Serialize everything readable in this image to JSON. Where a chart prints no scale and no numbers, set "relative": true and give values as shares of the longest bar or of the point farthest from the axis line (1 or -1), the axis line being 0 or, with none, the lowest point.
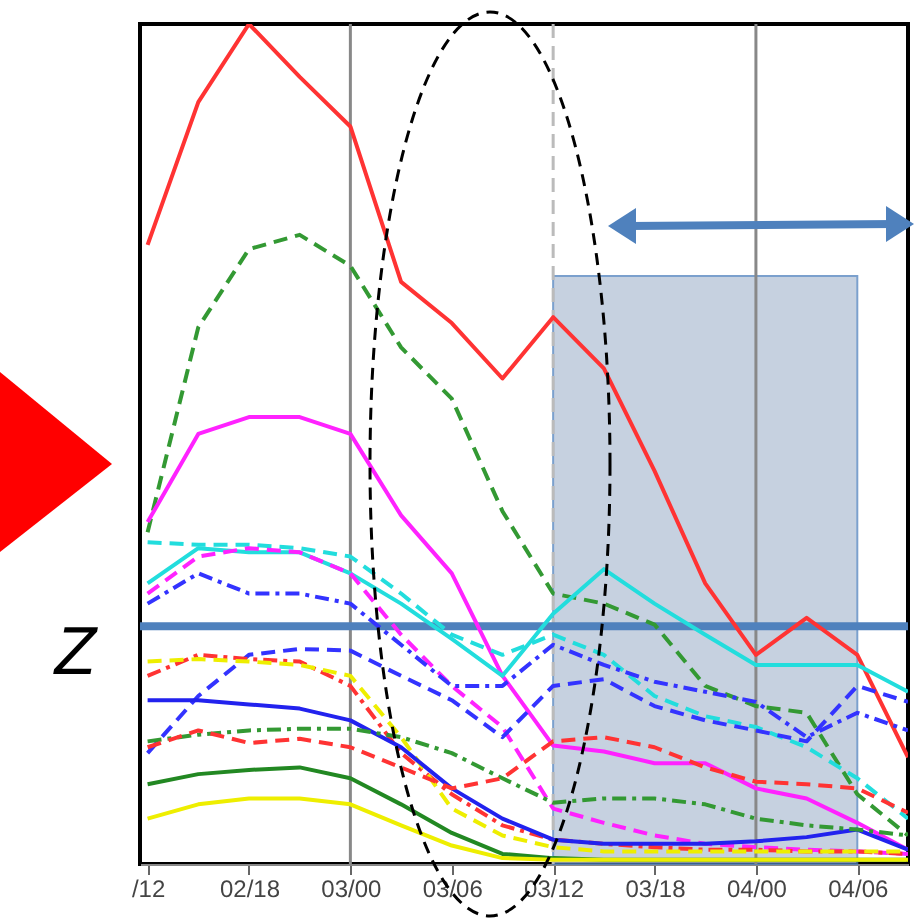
{
  "chart_data": {
    "type": "line",
    "relative": true,
    "categories": [
      "/12",
      null,
      "02/18",
      null,
      "03/00",
      null,
      "03/06",
      null,
      "03/12",
      null,
      "03/18",
      null,
      "04/00",
      null,
      "04/06",
      null
    ],
    "grid": false,
    "series": [
      {
        "color": "#ff3333",
        "line_style": "solid",
        "values": [
          0.737,
          0.907,
          1,
          0.937,
          0.878,
          0.693,
          0.644,
          0.578,
          0.651,
          0.59,
          0.468,
          0.334,
          0.249,
          0.293,
          0.249,
          0.127
        ]
      },
      {
        "color": "#339933",
        "line_style": "dashed",
        "values": [
          0.395,
          0.639,
          0.732,
          0.749,
          0.712,
          0.615,
          0.554,
          0.42,
          0.322,
          0.31,
          0.285,
          0.212,
          0.188,
          0.18,
          0.083,
          0.034
        ]
      },
      {
        "color": "#ff22ff",
        "line_style": "solid",
        "values": [
          0.407,
          0.512,
          0.532,
          0.532,
          0.512,
          0.415,
          0.346,
          0.224,
          0.141,
          0.134,
          0.12,
          0.12,
          0.09,
          0.078,
          0.049,
          0.017
        ]
      },
      {
        "color": "#22dddd",
        "line_style": "solid",
        "values": [
          0.334,
          0.376,
          0.371,
          0.371,
          0.346,
          0.31,
          0.268,
          0.224,
          0.298,
          0.351,
          0.31,
          0.273,
          0.237,
          0.237,
          0.237,
          0.205
        ]
      },
      {
        "color": "#22dddd",
        "line_style": "dashed",
        "values": [
          0.383,
          0.38,
          0.38,
          0.376,
          0.366,
          0.322,
          0.273,
          0.249,
          0.273,
          0.249,
          0.2,
          0.176,
          0.163,
          0.139,
          0.102,
          0.054
        ]
      },
      {
        "color": "#ff22ff",
        "line_style": "dashed",
        "values": [
          0.322,
          0.366,
          0.376,
          0.371,
          0.346,
          0.273,
          0.212,
          0.163,
          0.066,
          0.049,
          0.034,
          0.024,
          0.02,
          0.017,
          0.015,
          0.012
        ]
      },
      {
        "color": "#3333ff",
        "line_style": "dashdot",
        "values": [
          0.31,
          0.346,
          0.322,
          0.322,
          0.31,
          0.261,
          0.212,
          0.212,
          0.261,
          0.237,
          0.217,
          0.205,
          0.193,
          0.151,
          0.18,
          0.159
        ]
      },
      {
        "color": "#3333ff",
        "line_style": "dashed",
        "values": [
          0.132,
          0.2,
          0.249,
          0.256,
          0.254,
          0.224,
          0.195,
          0.151,
          0.212,
          0.22,
          0.188,
          0.171,
          0.159,
          0.146,
          0.212,
          0.193
        ]
      },
      {
        "color": "#ff3333",
        "line_style": "dashdot",
        "values": [
          0.224,
          0.249,
          0.244,
          0.241,
          0.212,
          0.132,
          0.083,
          0.046,
          0.029,
          0.024,
          0.02,
          0.017,
          0.017,
          0.015,
          0.015,
          0.012
        ]
      },
      {
        "color": "#eeee00",
        "line_style": "dashed",
        "values": [
          0.241,
          0.244,
          0.241,
          0.237,
          0.224,
          0.151,
          0.066,
          0.034,
          0.02,
          0.015,
          0.015,
          0.015,
          0.015,
          0.015,
          0.015,
          0.015
        ]
      },
      {
        "color": "#2222ee",
        "line_style": "solid",
        "values": [
          0.195,
          0.195,
          0.19,
          0.185,
          0.171,
          0.139,
          0.09,
          0.054,
          0.029,
          0.024,
          0.024,
          0.024,
          0.027,
          0.032,
          0.041,
          0.017
        ]
      },
      {
        "color": "#339933",
        "line_style": "dashdot",
        "values": [
          0.146,
          0.154,
          0.159,
          0.161,
          0.161,
          0.151,
          0.132,
          0.102,
          0.073,
          0.078,
          0.078,
          0.071,
          0.054,
          0.046,
          0.041,
          0.034
        ]
      },
      {
        "color": "#ff3333",
        "line_style": "dashed",
        "values": [
          0.139,
          0.159,
          0.144,
          0.149,
          0.139,
          0.115,
          0.09,
          0.102,
          0.146,
          0.151,
          0.139,
          0.115,
          0.098,
          0.095,
          0.09,
          0.061
        ]
      },
      {
        "color": "#228822",
        "line_style": "solid",
        "values": [
          0.095,
          0.107,
          0.112,
          0.115,
          0.102,
          0.071,
          0.037,
          0.012,
          0.007,
          0.005,
          0.005,
          0.005,
          0.005,
          0.005,
          0.005,
          0.005
        ]
      },
      {
        "color": "#eeee00",
        "line_style": "solid",
        "values": [
          0.054,
          0.071,
          0.078,
          0.078,
          0.071,
          0.046,
          0.022,
          0.007,
          0.005,
          0.005,
          0.005,
          0.005,
          0.005,
          0.005,
          0.005,
          0.005
        ]
      }
    ],
    "ref_lines": [
      {
        "axis": "x",
        "value": "03/00",
        "color": "#888888",
        "line_style": "solid"
      },
      {
        "axis": "x",
        "value": "04/00",
        "color": "#888888",
        "line_style": "solid"
      },
      {
        "axis": "x",
        "value": "03/12",
        "color": "#bbbbbb",
        "line_style": "dashed"
      },
      {
        "axis": "y",
        "value": 0.283,
        "label": "Z",
        "color": "#4f81bd",
        "line_style": "solid"
      }
    ],
    "bands": [
      {
        "axis": "x",
        "from": "03/12",
        "to": "04/06",
        "color": "#b4c2d6"
      }
    ]
  }
}
